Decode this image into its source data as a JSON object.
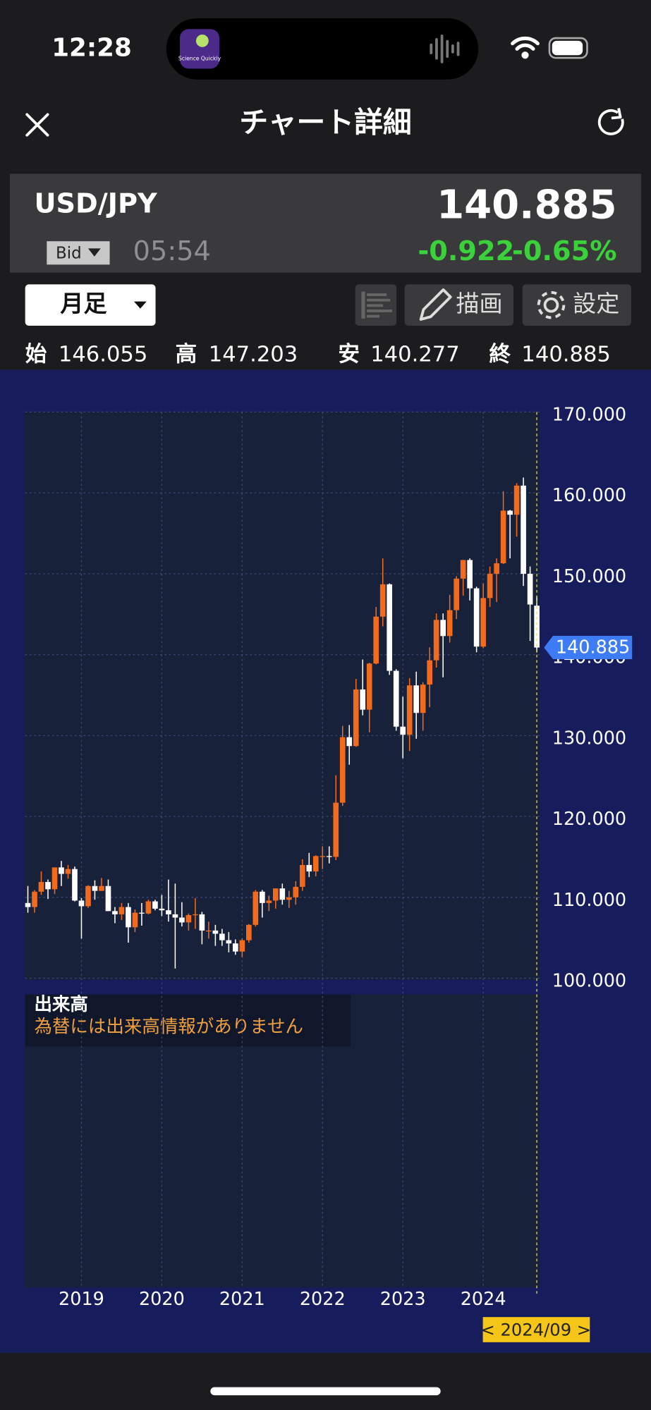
{
  "status_bar": {
    "time": "12:28",
    "app_badge": "Science Quickly"
  },
  "header": {
    "title": "チャート詳細"
  },
  "quote": {
    "symbol": "USD/JPY",
    "price_type": "Bid",
    "time": "05:54",
    "change": "-0.922",
    "change_percent": "-0.65%"
  },
  "controls": {
    "period": "月足",
    "draw": "描画",
    "settings": "設定"
  },
  "ohlc_labels": {
    "open": "始",
    "high": "高",
    "low": "安",
    "close": "終"
  },
  "volume_panel": {
    "title": "出来高",
    "message": "為替には出来高情報がありません"
  },
  "chart_data": {
    "type": "candlestick",
    "categories": [
      null,
      null,
      null,
      null,
      null,
      null,
      null,
      null,
      "2019",
      null,
      null,
      null,
      null,
      null,
      null,
      null,
      null,
      null,
      null,
      null,
      "2020",
      null,
      null,
      null,
      null,
      null,
      null,
      null,
      null,
      null,
      null,
      null,
      "2021",
      null,
      null,
      null,
      null,
      null,
      null,
      null,
      null,
      null,
      null,
      null,
      "2022",
      null,
      null,
      null,
      null,
      null,
      null,
      null,
      null,
      null,
      null,
      null,
      "2023",
      null,
      null,
      null,
      null,
      null,
      null,
      null,
      null,
      null,
      null,
      null,
      "2024",
      null,
      null,
      null,
      null,
      null,
      null,
      null,
      null
    ],
    "open": [
      109.3,
      108.8,
      110.7,
      111.9,
      111.0,
      113.7,
      112.9,
      113.5,
      109.6,
      108.9,
      111.4,
      110.8,
      111.4,
      108.3,
      107.9,
      108.8,
      106.3,
      108.1,
      108.0,
      109.5,
      108.6,
      108.4,
      107.9,
      107.5,
      106.9,
      107.8,
      107.9,
      105.9,
      105.9,
      105.5,
      104.7,
      104.3,
      103.3,
      104.7,
      106.6,
      110.7,
      109.3,
      109.6,
      111.1,
      109.7,
      110.0,
      111.3,
      114.0,
      113.2,
      115.1,
      115.1,
      115.0,
      121.7,
      129.8,
      128.7,
      135.7,
      133.2,
      138.9,
      144.7,
      148.7,
      138.0,
      131.1,
      130.1,
      136.2,
      132.8,
      136.3,
      139.3,
      144.3,
      142.3,
      145.5,
      149.4,
      151.7,
      148.2,
      141.0,
      147.0,
      150.0,
      151.3,
      157.8,
      157.3,
      160.9,
      150.0,
      146.055
    ],
    "high": [
      111.4,
      110.9,
      113.2,
      112.2,
      113.7,
      114.5,
      114.0,
      113.8,
      109.9,
      111.5,
      112.1,
      112.4,
      112.2,
      108.8,
      109.3,
      109.3,
      108.5,
      109.3,
      109.7,
      109.7,
      110.3,
      112.2,
      111.7,
      109.4,
      108.0,
      109.9,
      108.2,
      107.0,
      106.6,
      106.1,
      105.7,
      104.8,
      104.9,
      106.7,
      110.9,
      110.9,
      110.2,
      111.1,
      111.7,
      110.8,
      112.0,
      114.7,
      115.5,
      115.2,
      116.3,
      116.3,
      125.1,
      131.2,
      131.3,
      137.0,
      139.4,
      139.0,
      145.9,
      151.9,
      148.8,
      138.2,
      134.8,
      137.1,
      137.9,
      136.6,
      140.9,
      145.1,
      145.1,
      147.4,
      149.7,
      151.7,
      151.9,
      148.4,
      148.8,
      150.9,
      151.9,
      160.2,
      157.9,
      161.2,
      161.9,
      150.9,
      147.203
    ],
    "low": [
      108.1,
      108.1,
      110.3,
      109.8,
      110.4,
      111.4,
      112.3,
      109.5,
      104.9,
      108.7,
      109.7,
      110.8,
      108.3,
      106.8,
      107.2,
      104.4,
      105.7,
      106.5,
      107.9,
      108.4,
      107.7,
      107.0,
      101.2,
      106.4,
      105.9,
      106.1,
      104.2,
      104.9,
      104.0,
      104.0,
      103.2,
      102.9,
      102.6,
      104.4,
      106.4,
      107.5,
      108.3,
      108.6,
      109.1,
      108.7,
      109.1,
      110.8,
      112.5,
      112.6,
      113.5,
      114.2,
      114.6,
      121.3,
      126.4,
      128.6,
      132.5,
      130.4,
      138.8,
      143.5,
      137.5,
      130.6,
      127.2,
      128.1,
      129.6,
      130.6,
      133.5,
      138.4,
      137.2,
      141.5,
      144.4,
      147.3,
      146.7,
      140.3,
      140.8,
      145.9,
      146.5,
      151.2,
      151.9,
      154.6,
      148.5,
      141.7,
      140.277
    ],
    "close": [
      108.8,
      110.7,
      111.9,
      111.0,
      113.7,
      112.9,
      113.5,
      109.6,
      108.9,
      111.4,
      110.8,
      111.4,
      108.3,
      107.9,
      108.8,
      106.3,
      108.1,
      108.0,
      109.5,
      108.6,
      108.4,
      107.9,
      107.5,
      106.9,
      107.8,
      107.9,
      105.9,
      105.9,
      105.5,
      104.7,
      104.3,
      103.3,
      104.7,
      106.6,
      110.7,
      109.3,
      109.6,
      111.1,
      109.7,
      110.0,
      111.3,
      114.0,
      113.2,
      115.1,
      115.1,
      115.0,
      121.7,
      129.8,
      128.7,
      135.7,
      133.2,
      138.9,
      144.7,
      148.7,
      138.0,
      131.1,
      130.1,
      136.2,
      132.8,
      136.3,
      139.3,
      144.3,
      142.3,
      145.5,
      149.4,
      151.7,
      148.2,
      141.0,
      147.0,
      150.0,
      151.3,
      157.8,
      157.3,
      160.9,
      150.0,
      146.2,
      140.885
    ],
    "up_color": "#f26b1d",
    "down_color": "#ffffff",
    "ylim": [
      100,
      170
    ],
    "yticks": [
      {
        "value": 100,
        "label": "100.000"
      },
      {
        "value": 110,
        "label": "110.000"
      },
      {
        "value": 120,
        "label": "120.000"
      },
      {
        "value": 130,
        "label": "130.000"
      },
      {
        "value": 140,
        "label": "140.000"
      },
      {
        "value": 150,
        "label": "150.000"
      },
      {
        "value": 160,
        "label": "160.000"
      },
      {
        "value": 170,
        "label": "170.000"
      }
    ],
    "grid": true,
    "cursor_label": "< 2024/09 >"
  }
}
